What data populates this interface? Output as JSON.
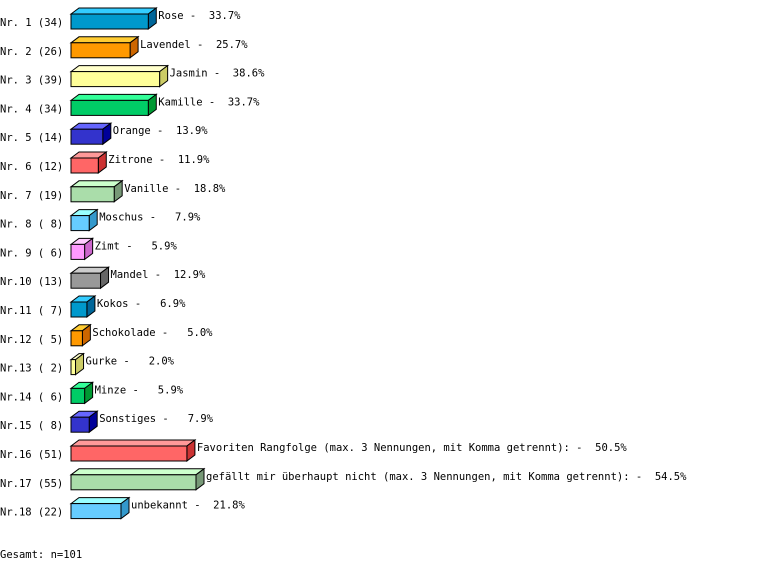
{
  "chart_data": {
    "type": "bar",
    "orientation": "horizontal",
    "style": "3d",
    "grid": false,
    "categories": [
      "Nr. 1 (34)",
      "Nr. 2 (26)",
      "Nr. 3 (39)",
      "Nr. 4 (34)",
      "Nr. 5 (14)",
      "Nr. 6 (12)",
      "Nr. 7 (19)",
      "Nr. 8 ( 8)",
      "Nr. 9 ( 6)",
      "Nr.10 (13)",
      "Nr.11 ( 7)",
      "Nr.12 ( 5)",
      "Nr.13 ( 2)",
      "Nr.14 ( 6)",
      "Nr.15 ( 8)",
      "Nr.16 (51)",
      "Nr.17 (55)",
      "Nr.18 (22)"
    ],
    "counts": [
      34,
      26,
      39,
      34,
      14,
      12,
      19,
      8,
      6,
      13,
      7,
      5,
      2,
      6,
      8,
      51,
      55,
      22
    ],
    "bar_labels": [
      "Rose -  33.7%",
      "Lavendel -  25.7%",
      "Jasmin -  38.6%",
      "Kamille -  33.7%",
      "Orange -  13.9%",
      "Zitrone -  11.9%",
      "Vanille -  18.8%",
      "Moschus -   7.9%",
      "Zimt -   5.9%",
      "Mandel -  12.9%",
      "Kokos -   6.9%",
      "Schokolade -   5.0%",
      "Gurke -   2.0%",
      "Minze -   5.9%",
      "Sonstiges -   7.9%",
      "Favoriten Rangfolge (max. 3 Nennungen, mit Komma getrennt): -  50.5%",
      "gefällt mir überhaupt nicht (max. 3 Nennungen, mit Komma getrennt): -  54.5%",
      "unbekannt -  21.8%"
    ],
    "percent": [
      33.7,
      25.7,
      38.6,
      33.7,
      13.9,
      11.9,
      18.8,
      7.9,
      5.9,
      12.9,
      6.9,
      5.0,
      2.0,
      5.9,
      7.9,
      50.5,
      54.5,
      21.8
    ],
    "colors": [
      {
        "front": "#0099cc",
        "top": "#33ccff",
        "side": "#006699"
      },
      {
        "front": "#ff9900",
        "top": "#ffcc33",
        "side": "#cc6600"
      },
      {
        "front": "#ffff99",
        "top": "#ffffcc",
        "side": "#cccc66"
      },
      {
        "front": "#00cc66",
        "top": "#33ff99",
        "side": "#009933"
      },
      {
        "front": "#3333cc",
        "top": "#6666ff",
        "side": "#000099"
      },
      {
        "front": "#ff6666",
        "top": "#ff9999",
        "side": "#cc3333"
      },
      {
        "front": "#aaddaa",
        "top": "#ccffcc",
        "side": "#779977"
      },
      {
        "front": "#66ccff",
        "top": "#99ffff",
        "side": "#3399cc"
      },
      {
        "front": "#ff99ff",
        "top": "#ffccff",
        "side": "#cc66cc"
      },
      {
        "front": "#999999",
        "top": "#cccccc",
        "side": "#666666"
      }
    ],
    "footer": "Gesamt: n=101"
  }
}
